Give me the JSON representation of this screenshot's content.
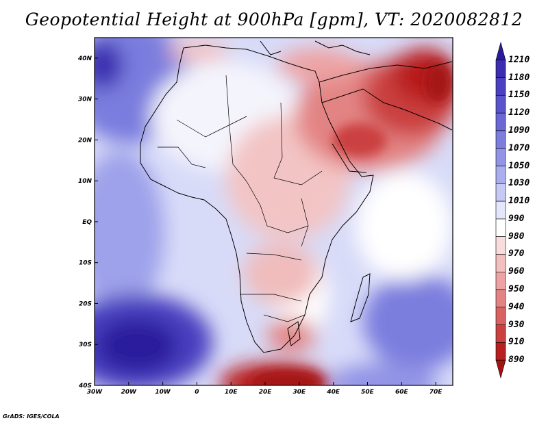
{
  "title": "Geopotential Height at 900hPa [gpm], VT: 2020082812",
  "credit": "GrADS: IGES/COLA",
  "map": {
    "region": "Africa and Middle East",
    "lon_range": [
      -30,
      75
    ],
    "lat_range": [
      -40,
      45
    ],
    "lon_ticks": [
      "30W",
      "20W",
      "10W",
      "0",
      "10E",
      "20E",
      "30E",
      "40E",
      "50E",
      "60E",
      "70E"
    ],
    "lat_ticks": [
      "40N",
      "30N",
      "20N",
      "10N",
      "EQ",
      "10S",
      "20S",
      "30S",
      "40S"
    ]
  },
  "colorbar": {
    "labels": [
      "1210",
      "1180",
      "1150",
      "1120",
      "1090",
      "1070",
      "1050",
      "1030",
      "1010",
      "990",
      "980",
      "970",
      "960",
      "950",
      "940",
      "930",
      "910",
      "890"
    ],
    "colors": [
      "#2a1a9c",
      "#3b2eb0",
      "#4a40c0",
      "#5a54cc",
      "#6a68d6",
      "#7c7ede",
      "#9294e6",
      "#aaaeee",
      "#c6c9f6",
      "#e4e6fb",
      "#ffffff",
      "#f9dcdc",
      "#f3c0c0",
      "#eda3a3",
      "#e38484",
      "#d86262",
      "#cb4141",
      "#b81f1f",
      "#a51212"
    ]
  }
}
